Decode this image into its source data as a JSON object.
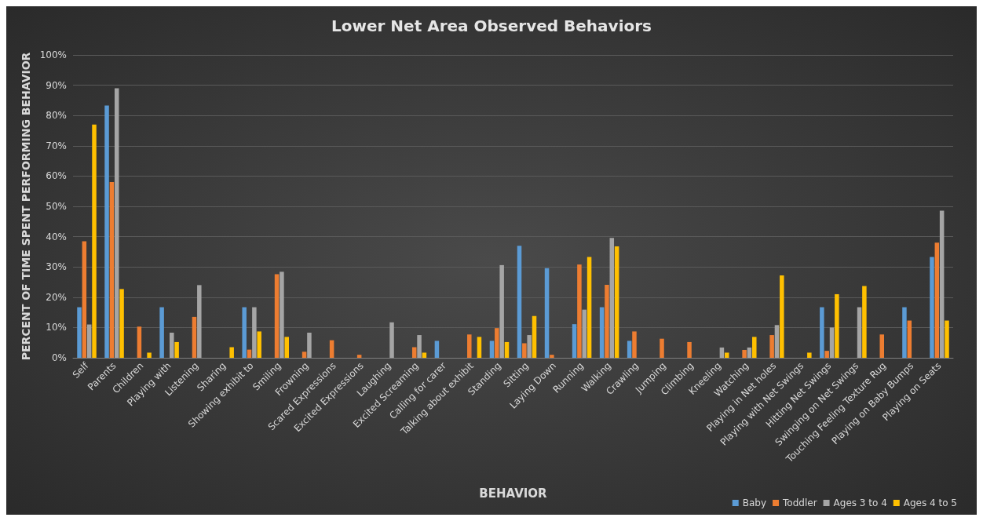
{
  "chart_data": {
    "type": "bar",
    "title": "Lower Net Area Observed Behaviors",
    "xlabel": "BEHAVIOR",
    "ylabel": "PERCENT OF TIME SPENT PERFORMING BEHAVIOR",
    "categories": [
      "Self",
      "Parents",
      "Children",
      "Playing with",
      "Listening",
      "Sharing",
      "Showing exhibit to",
      "Smiling",
      "Frowning",
      "Scared Expressions",
      "Excited Expressions",
      "Laughing",
      "Excited Screaming",
      "Calling for carer",
      "Talking about exhibit",
      "Standing",
      "Sitting",
      "Laying Down",
      "Running",
      "Walking",
      "Crawling",
      "Jumping",
      "Climbing",
      "Kneeling",
      "Watching",
      "Playing in Net holes",
      "Playing with Net Swings",
      "Hitting Net Swings",
      "Swinging on Net Swings",
      "Touching Feeling Texture Rug",
      "Playing on Baby Bumps",
      "Playing on Seats"
    ],
    "series": [
      {
        "name": "Baby",
        "color": "#5b9bd5",
        "values": [
          16.7,
          83.3,
          0,
          16.7,
          0,
          0,
          16.7,
          0,
          0,
          0,
          0,
          0,
          0,
          5.6,
          0,
          5.6,
          37,
          29.6,
          11.1,
          16.7,
          5.6,
          0,
          0,
          0,
          0,
          0,
          0,
          16.7,
          0,
          0,
          16.7,
          33.3
        ]
      },
      {
        "name": "Toddler",
        "color": "#ed7d31",
        "values": [
          38.5,
          58,
          10.3,
          0,
          13.5,
          0,
          2.7,
          27.6,
          2,
          5.8,
          1,
          0,
          3.5,
          0,
          7.7,
          9.8,
          4.8,
          1,
          30.8,
          24.1,
          8.7,
          6.3,
          5.2,
          0,
          2.6,
          7.5,
          0,
          2.3,
          0,
          7.7,
          12.3,
          38
        ]
      },
      {
        "name": "Ages 3 to 4",
        "color": "#a5a5a5",
        "values": [
          11,
          89,
          0,
          8.3,
          24,
          0,
          16.7,
          28.4,
          8.3,
          0,
          0,
          11.7,
          7.5,
          0,
          0,
          30.6,
          7.5,
          0,
          15.9,
          39.6,
          0,
          0,
          0,
          3.4,
          3.4,
          10.8,
          0,
          10,
          16.7,
          0,
          0,
          48.6
        ]
      },
      {
        "name": "Ages 4 to 5",
        "color": "#ffc000",
        "values": [
          77,
          22.7,
          1.7,
          5.2,
          0,
          3.5,
          8.7,
          6.9,
          0,
          0,
          0,
          0,
          1.7,
          0,
          6.9,
          5.2,
          13.8,
          0,
          33.3,
          36.8,
          0,
          0,
          0,
          1.7,
          6.9,
          27.2,
          1.7,
          21,
          23.7,
          0,
          0,
          12.3
        ]
      }
    ],
    "ylim": [
      0,
      100
    ],
    "yticks": [
      {
        "value": 0,
        "label": "0%"
      },
      {
        "value": 10,
        "label": "10%"
      },
      {
        "value": 20,
        "label": "20%"
      },
      {
        "value": 30,
        "label": "30%"
      },
      {
        "value": 40,
        "label": "40%"
      },
      {
        "value": 50,
        "label": "50%"
      },
      {
        "value": 60,
        "label": "60%"
      },
      {
        "value": 70,
        "label": "70%"
      },
      {
        "value": 80,
        "label": "80%"
      },
      {
        "value": 90,
        "label": "90%"
      },
      {
        "value": 100,
        "label": "100%"
      }
    ],
    "grid": "y",
    "legend": "bottom right"
  }
}
